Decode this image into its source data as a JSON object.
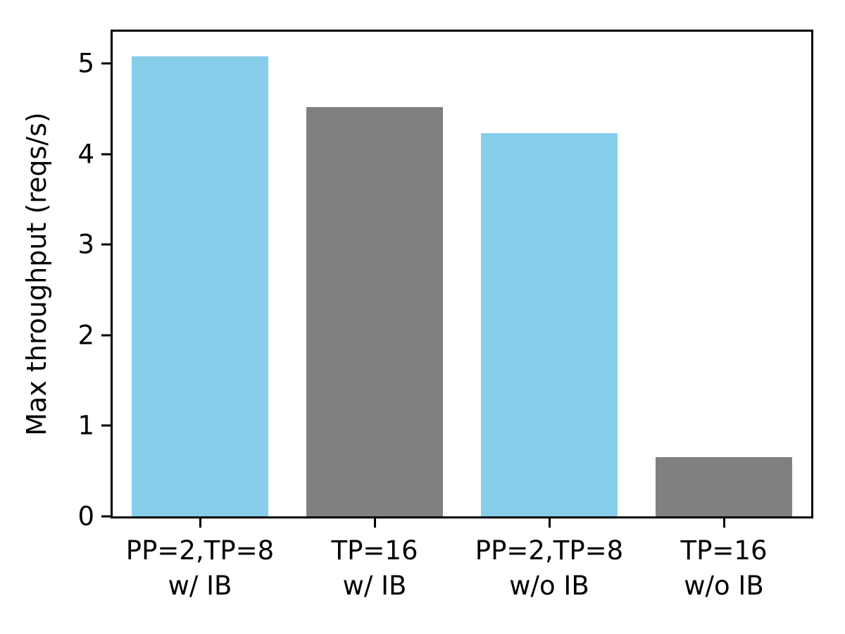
{
  "chart_data": {
    "type": "bar",
    "title": "",
    "xlabel": "",
    "ylabel": "Max throughput (reqs/s)",
    "categories": [
      "PP=2,TP=8\nw/ IB",
      "TP=16\nw/ IB",
      "PP=2,TP=8\nw/o IB",
      "TP=16\nw/o IB"
    ],
    "values": [
      5.08,
      4.52,
      4.23,
      0.65
    ],
    "bar_colors": [
      "#87CEEB",
      "#808080",
      "#87CEEB",
      "#808080"
    ],
    "yticks": [
      0,
      1,
      2,
      3,
      4,
      5
    ],
    "ylim": [
      0,
      5.35
    ],
    "grid": "off",
    "legend": "none",
    "axis_color": "#000000"
  }
}
